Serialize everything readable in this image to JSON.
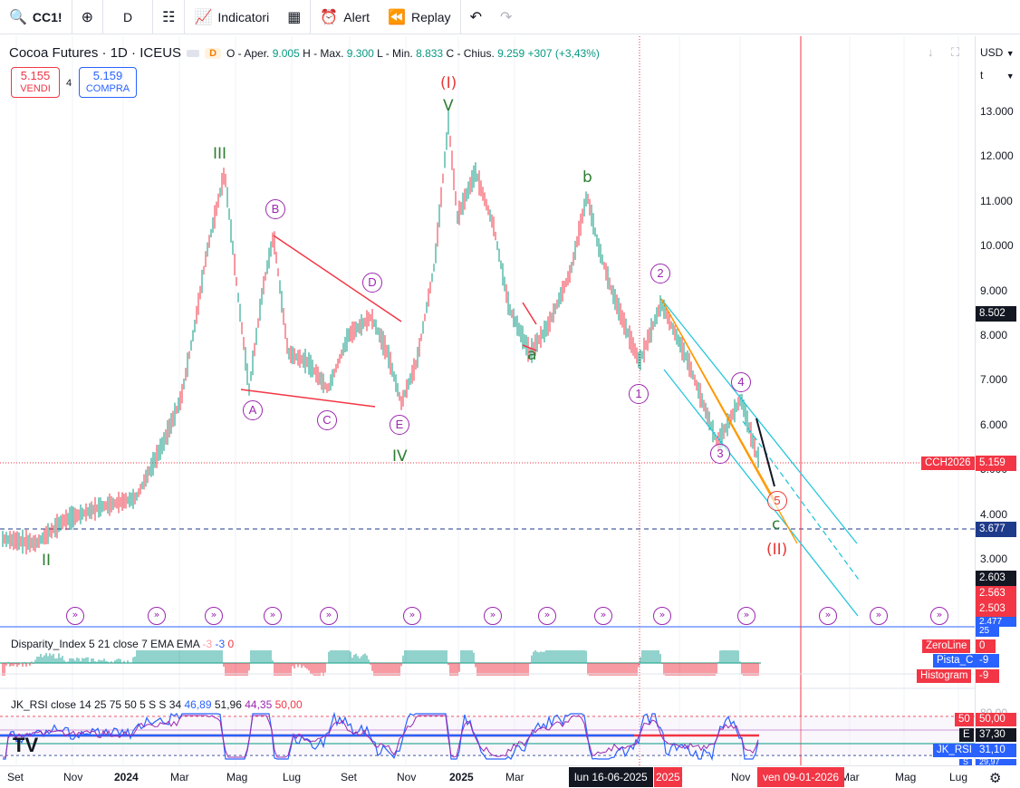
{
  "toolbar": {
    "symbol": "CC1!",
    "interval": "D",
    "indicators_label": "Indicatori",
    "alert_label": "Alert",
    "replay_label": "Replay"
  },
  "legend": {
    "title": "Cocoa Futures · 1D · ICEUS",
    "badge": "D",
    "open_label": "O - Aper.",
    "open": "9.005",
    "high_label": "H - Max.",
    "high": "9.300",
    "low_label": "L - Min.",
    "low": "8.833",
    "close_label": "C - Chius.",
    "close": "9.259",
    "change": "+307 (+3,43%)"
  },
  "trade": {
    "sell_price": "5.155",
    "sell_label": "VENDI",
    "spread": "4",
    "buy_price": "5.159",
    "buy_label": "COMPRA"
  },
  "axis": {
    "currency": "USD",
    "unit": "t",
    "price_ticks": [
      "13.000",
      "12.000",
      "11.000",
      "10.000",
      "9.000",
      "8.000",
      "7.000",
      "6.000",
      "5.000",
      "4.000",
      "3.000"
    ],
    "labels": {
      "p8502": "8.502",
      "cch_name": "CCH2026",
      "cch_value": "5.159",
      "p3677": "3.677",
      "p2603": "2.603",
      "p2563": "2.563",
      "p2503": "2.503",
      "p2477": "2.477"
    }
  },
  "waves": {
    "II": "II",
    "III": "III",
    "IV": "IV",
    "V": "V",
    "I_red": "(I)",
    "II_red": "(II)",
    "a": "a",
    "b": "b",
    "c": "c",
    "A": "A",
    "B": "B",
    "C": "C",
    "D": "D",
    "E": "E",
    "w1": "1",
    "w2": "2",
    "w3": "3",
    "w4": "4",
    "w5": "5"
  },
  "disparity": {
    "title": "Disparity_Index 5 21 close 7 EMA EMA",
    "v1": "-3",
    "v2": "-3",
    "v3": "0",
    "zeroline_label": "ZeroLine",
    "zeroline_value": "0",
    "pista_label": "Pista_C",
    "pista_value": "-9",
    "hist_label": "Histogram",
    "hist_value": "-9",
    "axis_value": "25"
  },
  "rsi": {
    "title": "JK_RSI close 14 25 75 50 5 S S 34",
    "v1": "46,89",
    "v2": "51,96",
    "v3": "44,35",
    "v4": "50,00",
    "level_top": "80,00",
    "level50_label": "50",
    "level50_value": "50,00",
    "e_label": "E",
    "e_value": "37,30",
    "rsi_value": "31,10",
    "rsi_label": "JK_RSI",
    "s_label": "S",
    "s_value": "29,97"
  },
  "time_axis": {
    "ticks": [
      "Set",
      "Nov",
      "2024",
      "Mar",
      "Mag",
      "Lug",
      "Set",
      "Nov",
      "2025",
      "Mar",
      "ett",
      "Nov",
      "Mar",
      "Mag",
      "Lug"
    ],
    "cursor_date": "lun 16-06-2025",
    "cursor_suffix": "2025",
    "right_date": "ven 09-01-2026"
  },
  "colors": {
    "up": "#089981",
    "down": "#f23645",
    "accent": "#2962ff",
    "green_wave": "#2e7d32",
    "red_wave": "#e53935",
    "purple": "#9c27b0",
    "channel": "#26c6da",
    "orange": "#ff9800"
  }
}
